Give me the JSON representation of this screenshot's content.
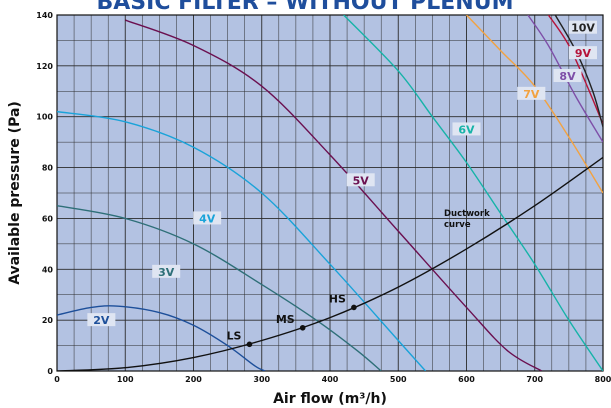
{
  "chart_data": {
    "type": "line",
    "title": "BASIC FILTER – WITHOUT PLENUM",
    "xlabel": "Air flow (m³/h)",
    "ylabel": "Available pressure (Pa)",
    "xlim": [
      0,
      800
    ],
    "ylim": [
      0,
      140
    ],
    "x_ticks": [
      "0",
      "100",
      "200",
      "300",
      "400",
      "500",
      "600",
      "700",
      "800"
    ],
    "y_ticks": [
      "0",
      "20",
      "40",
      "60",
      "80",
      "100",
      "120",
      "140"
    ],
    "grid": true,
    "background": "#b3c2e2",
    "series": [
      {
        "name": "2V",
        "color": "#1d4f9a",
        "points": [
          [
            0,
            22
          ],
          [
            50,
            25
          ],
          [
            90,
            25.5
          ],
          [
            150,
            23
          ],
          [
            200,
            18
          ],
          [
            250,
            10
          ],
          [
            290,
            2
          ],
          [
            305,
            0
          ]
        ]
      },
      {
        "name": "3V",
        "color": "#2e6f78",
        "points": [
          [
            0,
            65
          ],
          [
            100,
            60
          ],
          [
            200,
            50
          ],
          [
            300,
            34
          ],
          [
            380,
            20
          ],
          [
            440,
            8
          ],
          [
            475,
            0
          ]
        ]
      },
      {
        "name": "4V",
        "color": "#1aa3d9",
        "points": [
          [
            0,
            102
          ],
          [
            100,
            98
          ],
          [
            200,
            88
          ],
          [
            300,
            70
          ],
          [
            400,
            42
          ],
          [
            500,
            12
          ],
          [
            540,
            0
          ]
        ]
      },
      {
        "name": "5V",
        "color": "#6b1050",
        "points": [
          [
            100,
            138
          ],
          [
            200,
            128
          ],
          [
            300,
            112
          ],
          [
            400,
            85
          ],
          [
            500,
            55
          ],
          [
            600,
            25
          ],
          [
            660,
            8
          ],
          [
            710,
            0
          ]
        ]
      },
      {
        "name": "6V",
        "color": "#16b3a8",
        "points": [
          [
            420,
            140
          ],
          [
            500,
            118
          ],
          [
            550,
            100
          ],
          [
            600,
            82
          ],
          [
            650,
            62
          ],
          [
            700,
            42
          ],
          [
            750,
            20
          ],
          [
            800,
            0
          ]
        ]
      },
      {
        "name": "7V",
        "color": "#f2a240",
        "points": [
          [
            600,
            140
          ],
          [
            650,
            126
          ],
          [
            700,
            112
          ],
          [
            750,
            92
          ],
          [
            800,
            70
          ]
        ]
      },
      {
        "name": "8V",
        "color": "#7e4fa8",
        "points": [
          [
            690,
            140
          ],
          [
            720,
            128
          ],
          [
            760,
            108
          ],
          [
            800,
            90
          ]
        ]
      },
      {
        "name": "9V",
        "color": "#b5143a",
        "points": [
          [
            720,
            140
          ],
          [
            750,
            128
          ],
          [
            780,
            110
          ],
          [
            800,
            97
          ]
        ]
      },
      {
        "name": "10V",
        "color": "#222222",
        "points": [
          [
            730,
            140
          ],
          [
            760,
            126
          ],
          [
            785,
            110
          ],
          [
            800,
            96
          ]
        ]
      },
      {
        "name": "Ductwork curve",
        "color": "#111111",
        "points": [
          [
            0,
            0
          ],
          [
            100,
            1.3
          ],
          [
            200,
            5.3
          ],
          [
            300,
            12
          ],
          [
            400,
            21
          ],
          [
            500,
            33
          ],
          [
            600,
            48
          ],
          [
            700,
            65
          ],
          [
            800,
            84
          ]
        ]
      }
    ],
    "operating_points": [
      {
        "label": "LS",
        "x": 282,
        "y": 10.5
      },
      {
        "label": "MS",
        "x": 360,
        "y": 17
      },
      {
        "label": "HS",
        "x": 435,
        "y": 25
      }
    ],
    "annotations": [
      "Ductwork",
      "curve"
    ]
  }
}
